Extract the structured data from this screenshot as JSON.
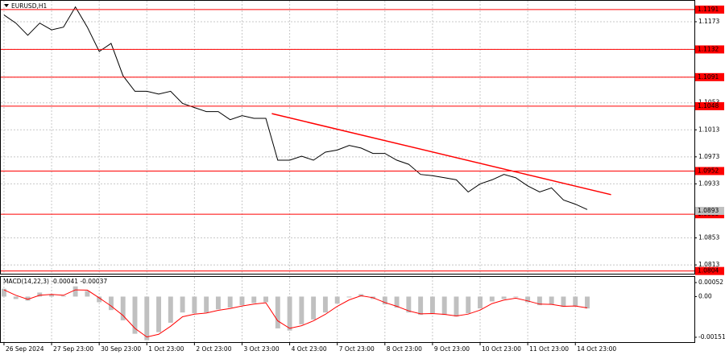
{
  "chart_data": [
    {
      "type": "line",
      "title": "EURUSD,H1",
      "x": [
        0,
        6,
        12,
        18,
        24,
        30,
        36,
        42,
        48,
        54,
        60,
        66,
        72,
        78,
        84,
        90,
        96,
        102,
        108,
        114,
        120,
        126,
        132,
        138,
        144,
        150,
        156,
        162,
        168,
        174,
        180,
        186,
        192,
        198,
        204,
        210,
        216,
        222,
        228,
        234,
        240,
        246,
        252,
        258,
        264,
        270,
        276,
        282,
        288,
        294
      ],
      "series": [
        {
          "name": "EURUSD",
          "color": "#000000",
          "values": [
            1.1183,
            1.1171,
            1.1153,
            1.1171,
            1.1161,
            1.1165,
            1.1195,
            1.1165,
            1.1129,
            1.1141,
            1.1093,
            1.107,
            1.107,
            1.1066,
            1.107,
            1.1052,
            1.1046,
            1.104,
            1.104,
            1.1028,
            1.1034,
            1.103,
            1.103,
            1.0968,
            1.0968,
            1.0974,
            1.0968,
            1.098,
            1.0983,
            1.099,
            1.0986,
            1.0978,
            1.0978,
            1.0968,
            1.0962,
            1.0947,
            1.0945,
            1.0942,
            1.0939,
            1.0921,
            1.0933,
            1.0939,
            1.0947,
            1.0942,
            1.093,
            1.0921,
            1.0927,
            1.0909,
            1.0903,
            1.0895
          ]
        }
      ],
      "xlim": [
        -1.6,
        348
      ],
      "ylim": [
        1.08,
        1.1204
      ],
      "yticks": [
        1.1173,
        1.1132,
        1.1091,
        1.1053,
        1.1013,
        1.0973,
        1.0933,
        1.0853,
        1.0813
      ],
      "levels": [
        1.1191,
        1.1132,
        1.1091,
        1.1048,
        1.0952,
        1.0888,
        1.0804
      ],
      "level_color": "#ff0000",
      "last_price": 1.0893,
      "trendline": {
        "x": [
          135,
          306
        ],
        "values": [
          1.1037,
          1.0917
        ],
        "color": "#ff0000"
      },
      "grid": true
    },
    {
      "type": "bar",
      "title": "MACD(14,22,3) -0.00041 -0.00037",
      "x": [
        0,
        6,
        12,
        18,
        24,
        30,
        36,
        42,
        48,
        54,
        60,
        66,
        72,
        78,
        84,
        90,
        96,
        102,
        108,
        114,
        120,
        126,
        132,
        138,
        144,
        150,
        156,
        162,
        168,
        174,
        180,
        186,
        192,
        198,
        204,
        210,
        216,
        222,
        228,
        234,
        240,
        246,
        252,
        258,
        264,
        270,
        276,
        282,
        288,
        294
      ],
      "series": [
        {
          "name": "MACD",
          "color": "#c0c0c0",
          "values": [
            0.00029,
            -9e-05,
            -0.00015,
            0.00015,
            9e-05,
            3e-05,
            0.00038,
            0.00021,
            -0.00021,
            -0.0005,
            -0.00088,
            -0.00138,
            -0.00162,
            -0.00132,
            -0.00097,
            -0.00059,
            -0.00062,
            -0.00059,
            -0.00047,
            -0.00041,
            -0.00032,
            -0.00024,
            -0.00021,
            -0.00118,
            -0.00126,
            -0.00103,
            -0.00085,
            -0.00059,
            -0.00026,
            -3e-05,
            9e-05,
            -9e-05,
            -0.00029,
            -0.00041,
            -0.00059,
            -0.00068,
            -0.00062,
            -0.00068,
            -0.00074,
            -0.00062,
            -0.00044,
            -0.00018,
            -9e-05,
            -3e-05,
            -0.00021,
            -0.00032,
            -0.00029,
            -0.00038,
            -0.00035,
            -0.00044
          ]
        },
        {
          "name": "Signal",
          "color": "#ff0000",
          "values": [
            0.00025,
            5e-05,
            -0.0001,
            5e-05,
            8e-05,
            5e-05,
            0.00025,
            0.00024,
            -5e-05,
            -0.00035,
            -0.0007,
            -0.00118,
            -0.0015,
            -0.0014,
            -0.0011,
            -0.00075,
            -0.00065,
            -0.00061,
            -0.00051,
            -0.00044,
            -0.00035,
            -0.00028,
            -0.00023,
            -0.0009,
            -0.00118,
            -0.00108,
            -0.0009,
            -0.00066,
            -0.00036,
            -0.00012,
            3e-05,
            -4e-05,
            -0.00022,
            -0.00036,
            -0.00053,
            -0.00064,
            -0.00063,
            -0.00066,
            -0.00072,
            -0.00065,
            -0.0005,
            -0.00026,
            -0.00013,
            -6e-05,
            -0.00016,
            -0.00028,
            -0.00029,
            -0.00036,
            -0.00035,
            -0.00042
          ]
        }
      ],
      "xlim": [
        -1.6,
        348
      ],
      "ylim": [
        -0.00169,
        0.00073
      ],
      "yticks": [
        0.00052,
        {
          "value": 0,
          "label": "0.00"
        },
        -0.00151
      ],
      "xticks": [
        {
          "value": 0,
          "label": "26 Sep 2024"
        },
        {
          "value": 24,
          "label": "27 Sep 23:00"
        },
        {
          "value": 48,
          "label": "30 Sep 23:00"
        },
        {
          "value": 72,
          "label": "1 Oct 23:00"
        },
        {
          "value": 96,
          "label": "2 Oct 23:00"
        },
        {
          "value": 120,
          "label": "3 Oct 23:00"
        },
        {
          "value": 144,
          "label": "4 Oct 23:00"
        },
        {
          "value": 168,
          "label": "7 Oct 23:00"
        },
        {
          "value": 192,
          "label": "8 Oct 23:00"
        },
        {
          "value": 216,
          "label": "9 Oct 23:00"
        },
        {
          "value": 240,
          "label": "10 Oct 23:00"
        },
        {
          "value": 264,
          "label": "11 Oct 23:00"
        },
        {
          "value": 288,
          "label": "14 Oct 23:00"
        }
      ],
      "grid": true
    }
  ]
}
